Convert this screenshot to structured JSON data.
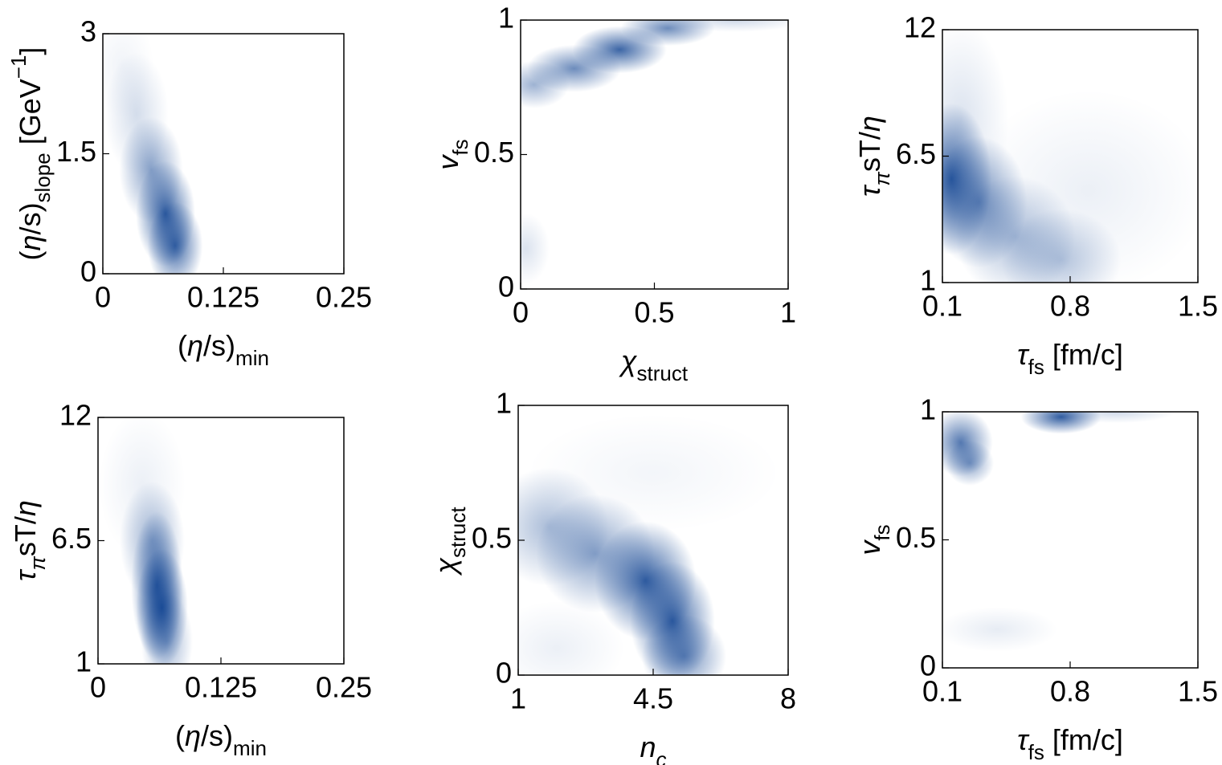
{
  "chart_data": [
    {
      "type": "density",
      "color": "#0b3f8f",
      "xlabel": [
        {
          "text": "("
        },
        {
          "text": "η",
          "style": "italic"
        },
        {
          "text": "/s)"
        },
        {
          "text": "min",
          "style": "sub"
        }
      ],
      "ylabel": [
        {
          "text": "("
        },
        {
          "text": "η",
          "style": "italic"
        },
        {
          "text": "/s)"
        },
        {
          "text": "slope",
          "style": "sub"
        },
        {
          "text": " [GeV"
        },
        {
          "text": "−1",
          "style": "sup"
        },
        {
          "text": "]"
        }
      ],
      "xlim": [
        0,
        0.25
      ],
      "ylim": [
        0,
        3
      ],
      "xticks": [
        0,
        0.125,
        0.25
      ],
      "yticks": [
        0,
        1.5,
        3
      ],
      "components": [
        {
          "x": 0.02,
          "y": 2.6,
          "sx": 0.015,
          "sy": 0.3,
          "weight": 0.06
        },
        {
          "x": 0.035,
          "y": 2.0,
          "sx": 0.015,
          "sy": 0.35,
          "weight": 0.18
        },
        {
          "x": 0.05,
          "y": 1.3,
          "sx": 0.015,
          "sy": 0.3,
          "weight": 0.5
        },
        {
          "x": 0.065,
          "y": 0.75,
          "sx": 0.014,
          "sy": 0.3,
          "weight": 0.85
        },
        {
          "x": 0.075,
          "y": 0.35,
          "sx": 0.013,
          "sy": 0.25,
          "weight": 0.8
        }
      ]
    },
    {
      "type": "density",
      "color": "#0b3f8f",
      "xlabel": [
        {
          "text": "χ",
          "style": "italic"
        },
        {
          "text": "struct",
          "style": "sub"
        }
      ],
      "ylabel": [
        {
          "text": "v",
          "style": "italic"
        },
        {
          "text": "fs",
          "style": "sub"
        }
      ],
      "xlim": [
        0,
        1
      ],
      "ylim": [
        0,
        1
      ],
      "xticks": [
        0,
        0.5,
        1
      ],
      "yticks": [
        0,
        0.5,
        1
      ],
      "components": [
        {
          "x": 0.05,
          "y": 0.76,
          "sx": 0.06,
          "sy": 0.04,
          "weight": 0.4
        },
        {
          "x": 0.2,
          "y": 0.82,
          "sx": 0.08,
          "sy": 0.04,
          "weight": 0.6
        },
        {
          "x": 0.37,
          "y": 0.89,
          "sx": 0.08,
          "sy": 0.04,
          "weight": 0.8
        },
        {
          "x": 0.55,
          "y": 0.97,
          "sx": 0.08,
          "sy": 0.03,
          "weight": 0.6
        },
        {
          "x": 0.8,
          "y": 1,
          "sx": 0.12,
          "sy": 0.02,
          "weight": 0.2
        },
        {
          "x": 0.02,
          "y": 0.15,
          "sx": 0.04,
          "sy": 0.06,
          "weight": 0.15
        }
      ]
    },
    {
      "type": "density",
      "color": "#0b3f8f",
      "xlabel": [
        {
          "text": "τ",
          "style": "italic"
        },
        {
          "text": "fs",
          "style": "sub"
        },
        {
          "text": " [fm/c]"
        }
      ],
      "ylabel": [
        {
          "text": "τ",
          "style": "italic"
        },
        {
          "text": "π",
          "style": "sub-italic"
        },
        {
          "text": "sT/"
        },
        {
          "text": "η",
          "style": "italic"
        }
      ],
      "xlim": [
        0.1,
        1.5
      ],
      "ylim": [
        1,
        12
      ],
      "xticks": [
        0.1,
        0.8,
        1.5
      ],
      "yticks": [
        1,
        6.5,
        12
      ],
      "components": [
        {
          "x": 0.15,
          "y": 5.5,
          "sx": 0.1,
          "sy": 1.5,
          "weight": 0.85
        },
        {
          "x": 0.3,
          "y": 4.5,
          "sx": 0.12,
          "sy": 1.3,
          "weight": 0.6
        },
        {
          "x": 0.5,
          "y": 3,
          "sx": 0.15,
          "sy": 1.2,
          "weight": 0.35
        },
        {
          "x": 0.75,
          "y": 2,
          "sx": 0.15,
          "sy": 1,
          "weight": 0.3
        },
        {
          "x": 0.2,
          "y": 8,
          "sx": 0.12,
          "sy": 2,
          "weight": 0.15
        },
        {
          "x": 0.9,
          "y": 5,
          "sx": 0.3,
          "sy": 2,
          "weight": 0.08
        }
      ]
    },
    {
      "type": "density",
      "color": "#0b3f8f",
      "xlabel": [
        {
          "text": "("
        },
        {
          "text": "η",
          "style": "italic"
        },
        {
          "text": "/s)"
        },
        {
          "text": "min",
          "style": "sub"
        }
      ],
      "ylabel": [
        {
          "text": "τ",
          "style": "italic"
        },
        {
          "text": "π",
          "style": "sub-italic"
        },
        {
          "text": "sT/"
        },
        {
          "text": "η",
          "style": "italic"
        }
      ],
      "xlim": [
        0,
        0.25
      ],
      "ylim": [
        1,
        12
      ],
      "xticks": [
        0,
        0.125,
        0.25
      ],
      "yticks": [
        1,
        6.5,
        12
      ],
      "components": [
        {
          "x": 0.045,
          "y": 9,
          "sx": 0.02,
          "sy": 1.5,
          "weight": 0.08
        },
        {
          "x": 0.055,
          "y": 6.5,
          "sx": 0.015,
          "sy": 1.2,
          "weight": 0.4
        },
        {
          "x": 0.06,
          "y": 4.5,
          "sx": 0.012,
          "sy": 1.5,
          "weight": 0.8
        },
        {
          "x": 0.065,
          "y": 3.5,
          "sx": 0.012,
          "sy": 1.2,
          "weight": 0.85
        },
        {
          "x": 0.07,
          "y": 2,
          "sx": 0.012,
          "sy": 1,
          "weight": 0.4
        }
      ]
    },
    {
      "type": "density",
      "color": "#0b3f8f",
      "xlabel": [
        {
          "text": "n",
          "style": "italic"
        },
        {
          "text": "c",
          "style": "sub-italic"
        }
      ],
      "ylabel": [
        {
          "text": "χ",
          "style": "italic"
        },
        {
          "text": "struct",
          "style": "sub"
        }
      ],
      "xlim": [
        1,
        8
      ],
      "ylim": [
        0,
        1
      ],
      "xticks": [
        1,
        4.5,
        8
      ],
      "yticks": [
        0,
        0.5,
        1
      ],
      "components": [
        {
          "x": 1.8,
          "y": 0.55,
          "sx": 0.7,
          "sy": 0.1,
          "weight": 0.35
        },
        {
          "x": 3,
          "y": 0.45,
          "sx": 0.7,
          "sy": 0.1,
          "weight": 0.5
        },
        {
          "x": 4.3,
          "y": 0.35,
          "sx": 0.6,
          "sy": 0.1,
          "weight": 0.85
        },
        {
          "x": 5,
          "y": 0.2,
          "sx": 0.5,
          "sy": 0.1,
          "weight": 0.85
        },
        {
          "x": 5.3,
          "y": 0.07,
          "sx": 0.5,
          "sy": 0.07,
          "weight": 0.6
        },
        {
          "x": 2,
          "y": 0.1,
          "sx": 0.8,
          "sy": 0.08,
          "weight": 0.08
        },
        {
          "x": 4.5,
          "y": 0.75,
          "sx": 1.5,
          "sy": 0.1,
          "weight": 0.05
        }
      ]
    },
    {
      "type": "density",
      "color": "#0b3f8f",
      "xlabel": [
        {
          "text": "τ",
          "style": "italic"
        },
        {
          "text": "fs",
          "style": "sub"
        },
        {
          "text": " [fm/c]"
        }
      ],
      "ylabel": [
        {
          "text": "v",
          "style": "italic"
        },
        {
          "text": "fs",
          "style": "sub"
        }
      ],
      "xlim": [
        0.1,
        1.5
      ],
      "ylim": [
        0,
        1
      ],
      "xticks": [
        0.1,
        0.8,
        1.5
      ],
      "yticks": [
        0,
        0.5,
        1
      ],
      "components": [
        {
          "x": 0.2,
          "y": 0.88,
          "sx": 0.08,
          "sy": 0.06,
          "weight": 0.7
        },
        {
          "x": 0.25,
          "y": 0.8,
          "sx": 0.06,
          "sy": 0.04,
          "weight": 0.5
        },
        {
          "x": 0.75,
          "y": 0.98,
          "sx": 0.1,
          "sy": 0.03,
          "weight": 0.85
        },
        {
          "x": 1.05,
          "y": 1,
          "sx": 0.15,
          "sy": 0.02,
          "weight": 0.2
        },
        {
          "x": 0.4,
          "y": 0.15,
          "sx": 0.15,
          "sy": 0.04,
          "weight": 0.1
        }
      ]
    }
  ]
}
